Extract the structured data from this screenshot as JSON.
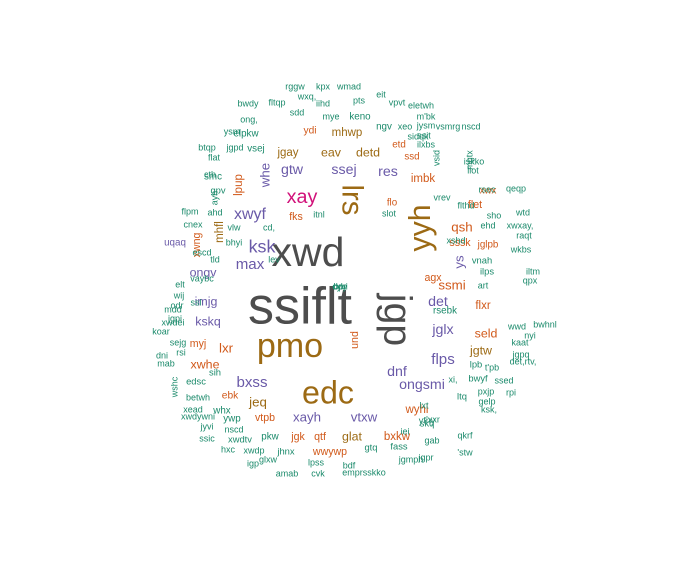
{
  "chart_data": {
    "type": "wordcloud",
    "title": "",
    "colors": {
      "gray": "#4d4d4d",
      "brown": "#9c6a14",
      "purple": "#6a5aa8",
      "orange": "#d1591a",
      "magenta": "#d1127a",
      "green": "#1b8a6b"
    },
    "words": [
      {
        "text": "ssiflt",
        "weight": 100,
        "color": "gray"
      },
      {
        "text": "xwd",
        "weight": 78,
        "color": "gray"
      },
      {
        "text": "jgp",
        "weight": 74,
        "color": "gray"
      },
      {
        "text": "pmo",
        "weight": 64,
        "color": "brown"
      },
      {
        "text": "edc",
        "weight": 60,
        "color": "brown"
      },
      {
        "text": "yyh",
        "weight": 56,
        "color": "brown"
      },
      {
        "text": "lrs",
        "weight": 54,
        "color": "brown"
      },
      {
        "text": "xay",
        "weight": 34,
        "color": "magenta"
      },
      {
        "text": "ksk",
        "weight": 30,
        "color": "purple"
      },
      {
        "text": "xwyf",
        "weight": 26,
        "color": "purple"
      },
      {
        "text": "bxss",
        "weight": 24,
        "color": "purple"
      },
      {
        "text": "flps",
        "weight": 24,
        "color": "purple"
      },
      {
        "text": "max",
        "weight": 24,
        "color": "purple"
      },
      {
        "text": "dnf",
        "weight": 22,
        "color": "purple"
      },
      {
        "text": "ongsmi",
        "weight": 22,
        "color": "purple"
      },
      {
        "text": "det",
        "weight": 22,
        "color": "purple"
      },
      {
        "text": "jglx",
        "weight": 22,
        "color": "purple"
      },
      {
        "text": "ssej",
        "weight": 22,
        "color": "purple"
      },
      {
        "text": "gtw",
        "weight": 22,
        "color": "purple"
      },
      {
        "text": "res",
        "weight": 22,
        "color": "purple"
      },
      {
        "text": "xayh",
        "weight": 20,
        "color": "purple"
      },
      {
        "text": "vtxw",
        "weight": 20,
        "color": "purple"
      },
      {
        "text": "whe",
        "weight": 20,
        "color": "purple"
      },
      {
        "text": "ys",
        "weight": 20,
        "color": "purple"
      },
      {
        "text": "ssmi",
        "weight": 20,
        "color": "orange"
      },
      {
        "text": "qsh",
        "weight": 20,
        "color": "orange"
      },
      {
        "text": "jeq",
        "weight": 20,
        "color": "brown"
      },
      {
        "text": "lxr",
        "weight": 20,
        "color": "orange"
      },
      {
        "text": "xwhe",
        "weight": 18,
        "color": "orange"
      },
      {
        "text": "kskq",
        "weight": 18,
        "color": "purple"
      },
      {
        "text": "imjg",
        "weight": 18,
        "color": "purple"
      },
      {
        "text": "ongv",
        "weight": 18,
        "color": "purple"
      },
      {
        "text": "seld",
        "weight": 18,
        "color": "orange"
      },
      {
        "text": "jgtw",
        "weight": 18,
        "color": "brown"
      },
      {
        "text": "wyhi",
        "weight": 16,
        "color": "orange"
      },
      {
        "text": "glat",
        "weight": 18,
        "color": "brown"
      },
      {
        "text": "bxkw",
        "weight": 16,
        "color": "orange"
      },
      {
        "text": "eav",
        "weight": 18,
        "color": "brown"
      },
      {
        "text": "detd",
        "weight": 18,
        "color": "brown"
      },
      {
        "text": "mhwp",
        "weight": 16,
        "color": "brown"
      },
      {
        "text": "jgay",
        "weight": 16,
        "color": "brown"
      },
      {
        "text": "imbk",
        "weight": 16,
        "color": "orange"
      },
      {
        "text": "lpup",
        "weight": 16,
        "color": "orange"
      },
      {
        "text": "mhfl",
        "weight": 16,
        "color": "brown"
      },
      {
        "text": "xwng",
        "weight": 14,
        "color": "orange"
      },
      {
        "text": "flxr",
        "weight": 16,
        "color": "orange"
      },
      {
        "text": "sssk",
        "weight": 14,
        "color": "orange"
      },
      {
        "text": "und",
        "weight": 14,
        "color": "orange"
      },
      {
        "text": "fks",
        "weight": 14,
        "color": "orange"
      },
      {
        "text": "myj",
        "weight": 14,
        "color": "orange"
      },
      {
        "text": "qtf",
        "weight": 14,
        "color": "orange"
      },
      {
        "text": "wwywp",
        "weight": 14,
        "color": "orange"
      },
      {
        "text": "agx",
        "weight": 14,
        "color": "orange"
      },
      {
        "text": "flet",
        "weight": 14,
        "color": "orange"
      },
      {
        "text": "xwx",
        "weight": 12,
        "color": "orange"
      },
      {
        "text": "ydi",
        "weight": 13,
        "color": "orange"
      },
      {
        "text": "ssd",
        "weight": 12,
        "color": "orange"
      },
      {
        "text": "etd",
        "weight": 12,
        "color": "orange"
      },
      {
        "text": "flo",
        "weight": 12,
        "color": "orange"
      },
      {
        "text": "jgk",
        "weight": 14,
        "color": "orange"
      },
      {
        "text": "vtpb",
        "weight": 14,
        "color": "orange"
      },
      {
        "text": "ebk",
        "weight": 13,
        "color": "orange"
      },
      {
        "text": "jglpb",
        "weight": 12,
        "color": "orange"
      },
      {
        "text": "uqaq",
        "weight": 12,
        "color": "purple"
      },
      {
        "text": "smc",
        "weight": 12,
        "color": "green"
      },
      {
        "text": "elpkw",
        "weight": 12,
        "color": "green"
      },
      {
        "text": "vsej",
        "weight": 12,
        "color": "green"
      },
      {
        "text": "ngv",
        "weight": 12,
        "color": "green"
      },
      {
        "text": "keno",
        "weight": 12,
        "color": "green"
      },
      {
        "text": "mye",
        "weight": 10,
        "color": "green"
      },
      {
        "text": "rsebk",
        "weight": 12,
        "color": "green"
      },
      {
        "text": "vnah",
        "weight": 11,
        "color": "green"
      },
      {
        "text": "ilps",
        "weight": 11,
        "color": "green"
      },
      {
        "text": "lpb",
        "weight": 11,
        "color": "green"
      },
      {
        "text": "bwyf",
        "weight": 11,
        "color": "green"
      },
      {
        "text": "ltq",
        "weight": 11,
        "color": "green"
      },
      {
        "text": "skq",
        "weight": 11,
        "color": "green"
      },
      {
        "text": "pkw",
        "weight": 12,
        "color": "green"
      },
      {
        "text": "whx",
        "weight": 12,
        "color": "green"
      },
      {
        "text": "ywp",
        "weight": 12,
        "color": "green"
      },
      {
        "text": "xwdtv",
        "weight": 11,
        "color": "green"
      },
      {
        "text": "edsc",
        "weight": 11,
        "color": "green"
      },
      {
        "text": "gtq",
        "weight": 11,
        "color": "green"
      },
      {
        "text": "fass",
        "weight": 11,
        "color": "green"
      },
      {
        "text": "sih",
        "weight": 11,
        "color": "green"
      },
      {
        "text": "jhnx",
        "weight": 11,
        "color": "green"
      },
      {
        "text": "lpss",
        "weight": 10,
        "color": "green"
      },
      {
        "text": "amab",
        "weight": 10,
        "color": "green"
      },
      {
        "text": "bdf",
        "weight": 10,
        "color": "green"
      },
      {
        "text": "gpv",
        "weight": 11,
        "color": "green"
      },
      {
        "text": "xshd",
        "weight": 10,
        "color": "green"
      },
      {
        "text": "mgtx",
        "weight": 10,
        "color": "green"
      },
      {
        "text": "ehd",
        "weight": 10,
        "color": "green"
      },
      {
        "text": "flthd",
        "weight": 10,
        "color": "green"
      },
      {
        "text": "sho",
        "weight": 10,
        "color": "green"
      },
      {
        "text": "ahd",
        "weight": 10,
        "color": "green"
      },
      {
        "text": "ayh",
        "weight": 10,
        "color": "green"
      },
      {
        "text": "itnl",
        "weight": 10,
        "color": "green"
      },
      {
        "text": "slot",
        "weight": 10,
        "color": "green"
      },
      {
        "text": "jgmph",
        "weight": 10,
        "color": "green"
      },
      {
        "text": "glxw",
        "weight": 10,
        "color": "green"
      },
      {
        "text": "cvk",
        "weight": 10,
        "color": "green"
      },
      {
        "text": "emprsskko",
        "weight": 10,
        "color": "green"
      },
      {
        "text": "xwdp",
        "weight": 10,
        "color": "green"
      },
      {
        "text": "hxc",
        "weight": 10,
        "color": "green"
      },
      {
        "text": "ssic",
        "weight": 10,
        "color": "green"
      },
      {
        "text": "jyvi",
        "weight": 10,
        "color": "green"
      },
      {
        "text": "xwdywni",
        "weight": 10,
        "color": "green"
      },
      {
        "text": "xead",
        "weight": 10,
        "color": "green"
      },
      {
        "text": "betwh",
        "weight": 10,
        "color": "green"
      },
      {
        "text": "wshc",
        "weight": 10,
        "color": "green"
      },
      {
        "text": "mab",
        "weight": 10,
        "color": "green"
      },
      {
        "text": "dni",
        "weight": 10,
        "color": "green"
      },
      {
        "text": "rsi",
        "weight": 10,
        "color": "green"
      },
      {
        "text": "sejg",
        "weight": 10,
        "color": "green"
      },
      {
        "text": "koar",
        "weight": 10,
        "color": "green"
      },
      {
        "text": "xwdei",
        "weight": 10,
        "color": "green"
      },
      {
        "text": "jgpi",
        "weight": 10,
        "color": "green"
      },
      {
        "text": "odr",
        "weight": 10,
        "color": "green"
      },
      {
        "text": "elt",
        "weight": 10,
        "color": "green"
      },
      {
        "text": "vaybc",
        "weight": 10,
        "color": "green"
      },
      {
        "text": "escd",
        "weight": 10,
        "color": "green"
      },
      {
        "text": "cnex",
        "weight": 10,
        "color": "green"
      },
      {
        "text": "flpm",
        "weight": 10,
        "color": "green"
      },
      {
        "text": "flat",
        "weight": 10,
        "color": "green"
      },
      {
        "text": "cth",
        "weight": 10,
        "color": "green"
      },
      {
        "text": "btqp",
        "weight": 10,
        "color": "green"
      },
      {
        "text": "jgpd",
        "weight": 10,
        "color": "green"
      },
      {
        "text": "ysm",
        "weight": 10,
        "color": "green"
      },
      {
        "text": "ong,",
        "weight": 10,
        "color": "green"
      },
      {
        "text": "bwdy",
        "weight": 10,
        "color": "green"
      },
      {
        "text": "fltqp",
        "weight": 10,
        "color": "green"
      },
      {
        "text": "sdd",
        "weight": 10,
        "color": "green"
      },
      {
        "text": "iihd",
        "weight": 10,
        "color": "green"
      },
      {
        "text": "pts",
        "weight": 10,
        "color": "green"
      },
      {
        "text": "kpx",
        "weight": 10,
        "color": "green"
      },
      {
        "text": "wmad",
        "weight": 10,
        "color": "green"
      },
      {
        "text": "rggw",
        "weight": 10,
        "color": "green"
      },
      {
        "text": "wxq,",
        "weight": 10,
        "color": "green"
      },
      {
        "text": "eit",
        "weight": 10,
        "color": "green"
      },
      {
        "text": "vpvt",
        "weight": 10,
        "color": "green"
      },
      {
        "text": "eletwh",
        "weight": 10,
        "color": "green"
      },
      {
        "text": "m'bk",
        "weight": 10,
        "color": "green"
      },
      {
        "text": "jysm",
        "weight": 10,
        "color": "green"
      },
      {
        "text": "vsmrg",
        "weight": 10,
        "color": "green"
      },
      {
        "text": "nscd",
        "weight": 10,
        "color": "green"
      },
      {
        "text": "ssit",
        "weight": 10,
        "color": "green"
      },
      {
        "text": "xeo",
        "weight": 10,
        "color": "green"
      },
      {
        "text": "sidqk",
        "weight": 10,
        "color": "green"
      },
      {
        "text": "ilxbs",
        "weight": 10,
        "color": "green"
      },
      {
        "text": "vsid",
        "weight": 10,
        "color": "green"
      },
      {
        "text": "iskko",
        "weight": 10,
        "color": "green"
      },
      {
        "text": "llot",
        "weight": 10,
        "color": "green"
      },
      {
        "text": "rsec",
        "weight": 10,
        "color": "green"
      },
      {
        "text": "qeqp",
        "weight": 10,
        "color": "green"
      },
      {
        "text": "wtd",
        "weight": 10,
        "color": "green"
      },
      {
        "text": "xwxay,",
        "weight": 10,
        "color": "green"
      },
      {
        "text": "raqt",
        "weight": 10,
        "color": "green"
      },
      {
        "text": "wkbs",
        "weight": 10,
        "color": "green"
      },
      {
        "text": "iltm",
        "weight": 10,
        "color": "green"
      },
      {
        "text": "qpx",
        "weight": 10,
        "color": "green"
      },
      {
        "text": "nyi",
        "weight": 10,
        "color": "green"
      },
      {
        "text": "bwhnl",
        "weight": 10,
        "color": "green"
      },
      {
        "text": "wwd",
        "weight": 10,
        "color": "green"
      },
      {
        "text": "kaat",
        "weight": 10,
        "color": "green"
      },
      {
        "text": "jgpq",
        "weight": 10,
        "color": "green"
      },
      {
        "text": "t'pb",
        "weight": 10,
        "color": "green"
      },
      {
        "text": "det,rtv,",
        "weight": 10,
        "color": "green"
      },
      {
        "text": "ssed",
        "weight": 10,
        "color": "green"
      },
      {
        "text": "pxjp",
        "weight": 10,
        "color": "green"
      },
      {
        "text": "rpi",
        "weight": 10,
        "color": "green"
      },
      {
        "text": "gelp",
        "weight": 10,
        "color": "green"
      },
      {
        "text": "ksk,",
        "weight": 10,
        "color": "green"
      },
      {
        "text": "qkrf",
        "weight": 10,
        "color": "green"
      },
      {
        "text": "'stw",
        "weight": 10,
        "color": "green"
      },
      {
        "text": "jgpr",
        "weight": 10,
        "color": "green"
      },
      {
        "text": "gab",
        "weight": 10,
        "color": "green"
      },
      {
        "text": "'xxr",
        "weight": 10,
        "color": "green"
      },
      {
        "text": "yfny",
        "weight": 10,
        "color": "green"
      },
      {
        "text": "nscd",
        "weight": 10,
        "color": "green"
      },
      {
        "text": "igp",
        "weight": 10,
        "color": "green"
      },
      {
        "text": "tld",
        "weight": 10,
        "color": "green"
      },
      {
        "text": "vlw",
        "weight": 10,
        "color": "green"
      },
      {
        "text": "cd,",
        "weight": 10,
        "color": "green"
      },
      {
        "text": "lev",
        "weight": 10,
        "color": "green"
      },
      {
        "text": "bhyi",
        "weight": 10,
        "color": "green"
      },
      {
        "text": "vrev",
        "weight": 10,
        "color": "green"
      },
      {
        "text": "xi,",
        "weight": 10,
        "color": "green"
      },
      {
        "text": "lxt",
        "weight": 10,
        "color": "green"
      },
      {
        "text": "wij",
        "weight": 10,
        "color": "green"
      },
      {
        "text": "mdd",
        "weight": 10,
        "color": "green"
      },
      {
        "text": "ssl",
        "weight": 10,
        "color": "green"
      },
      {
        "text": "iei",
        "weight": 10,
        "color": "green"
      },
      {
        "text": "art",
        "weight": 10,
        "color": "green"
      },
      {
        "text": "ddy",
        "weight": 10,
        "color": "green"
      },
      {
        "text": "cyvi",
        "weight": 10,
        "color": "green"
      },
      {
        "text": "bpr",
        "weight": 10,
        "color": "green"
      }
    ]
  }
}
